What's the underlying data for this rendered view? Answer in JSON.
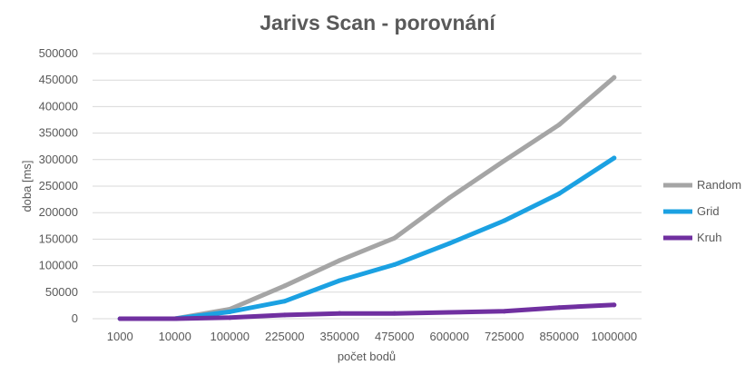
{
  "chart_data": {
    "type": "line",
    "title": "Jarivs Scan - porovnání",
    "xlabel": "počet bodů",
    "ylabel": "doba [ms]",
    "categories": [
      "1000",
      "10000",
      "100000",
      "225000",
      "350000",
      "475000",
      "600000",
      "725000",
      "850000",
      "1000000"
    ],
    "ylim": [
      0,
      500000
    ],
    "yticks": [
      "0",
      "50000",
      "100000",
      "150000",
      "200000",
      "250000",
      "300000",
      "350000",
      "400000",
      "450000",
      "500000"
    ],
    "grid": true,
    "legend_position": "right",
    "series": [
      {
        "name": "Random",
        "color": "#a5a5a5",
        "values": [
          0,
          0,
          18000,
          62000,
          110000,
          152000,
          228000,
          298000,
          366000,
          455000
        ]
      },
      {
        "name": "Grid",
        "color": "#1ba1e2",
        "values": [
          0,
          0,
          13000,
          33000,
          72000,
          102000,
          142000,
          185000,
          236000,
          303000
        ]
      },
      {
        "name": "Kruh",
        "color": "#7030a0",
        "values": [
          0,
          0,
          2000,
          7000,
          10000,
          10000,
          12000,
          14000,
          21000,
          26000
        ]
      }
    ]
  }
}
